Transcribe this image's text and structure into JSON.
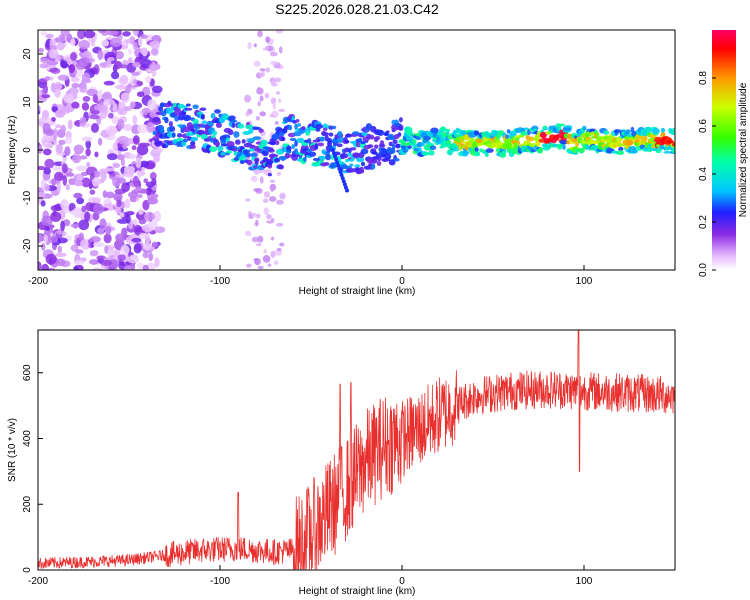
{
  "title": "S225.2026.028.21.03.C42",
  "chart_data": [
    {
      "type": "heatmap",
      "xlabel": "Height of straight line (km)",
      "ylabel": "Frequency (Hz)",
      "xlim": [
        -200,
        150
      ],
      "ylim": [
        -25,
        25
      ],
      "xticks": [
        -200,
        -100,
        0,
        100
      ],
      "yticks": [
        20,
        10,
        0,
        -10,
        -20
      ],
      "ytick_labels": [
        "20",
        "10",
        "0",
        "-10",
        "-20"
      ],
      "colorbar": {
        "label": "Normalized spectral amplitude",
        "range": [
          0,
          1
        ],
        "ticks": [
          0.0,
          0.2,
          0.4,
          0.6,
          0.8
        ],
        "tick_labels": [
          "0.0",
          "0.2",
          "0.4",
          "0.6",
          "0.8"
        ]
      },
      "ridge": {
        "x": [
          -135,
          -125,
          -115,
          -105,
          -95,
          -85,
          -78,
          -70,
          -62,
          -55,
          -45,
          -35,
          -28,
          -20,
          -10,
          0,
          10,
          20,
          40,
          60,
          80,
          90,
          95,
          100,
          110,
          120,
          130,
          140,
          150
        ],
        "y": [
          5,
          5.5,
          5,
          4,
          3,
          1,
          0,
          -1,
          3,
          2,
          1,
          0.5,
          -1,
          0.5,
          1,
          2,
          1.5,
          2,
          1.5,
          1.5,
          2.5,
          3,
          1,
          2.5,
          2,
          1.5,
          2,
          2,
          2
        ]
      },
      "noise_region_x": [
        -200,
        -133
      ]
    },
    {
      "type": "line",
      "xlabel": "Height of straight line (km)",
      "ylabel": "SNR (10 * v/v)",
      "xlim": [
        -200,
        150
      ],
      "ylim": [
        0,
        730
      ],
      "xticks": [
        -200,
        -100,
        0,
        100
      ],
      "yticks": [
        0,
        200,
        400,
        600
      ],
      "series": [
        {
          "name": "SNR",
          "color": "#e8312f",
          "trend": {
            "x": [
              -200,
              -170,
              -150,
              -130,
              -110,
              -90,
              -70,
              -60,
              -50,
              -40,
              -30,
              -20,
              -10,
              0,
              10,
              20,
              30,
              40,
              60,
              80,
              100,
              120,
              150
            ],
            "y": [
              20,
              25,
              30,
              45,
              60,
              65,
              55,
              60,
              110,
              180,
              250,
              330,
              380,
              400,
              430,
              470,
              500,
              530,
              545,
              550,
              545,
              540,
              530
            ]
          },
          "spikes": [
            {
              "x": -90,
              "y": 235
            },
            {
              "x": -34,
              "y": 565
            },
            {
              "x": -28,
              "y": 570
            },
            {
              "x": 97,
              "y": 730
            },
            {
              "x": 97.5,
              "y": 300
            }
          ]
        }
      ]
    }
  ]
}
